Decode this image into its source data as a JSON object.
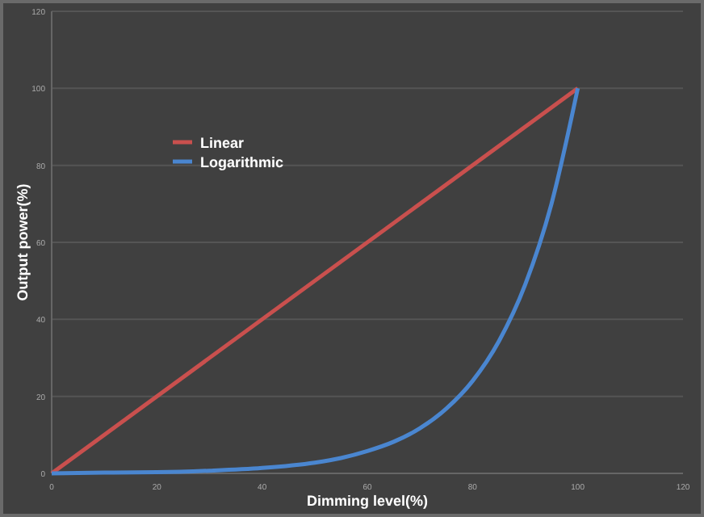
{
  "chart_data": {
    "type": "line",
    "xlabel": "Dimming level(%)",
    "ylabel": "Output power(%)",
    "xlim": [
      0,
      120
    ],
    "ylim": [
      0,
      120
    ],
    "xticks": [
      0,
      20,
      40,
      60,
      80,
      100,
      120
    ],
    "yticks": [
      0,
      20,
      40,
      60,
      80,
      100,
      120
    ],
    "grid": "y",
    "legend": "top left",
    "series": [
      {
        "name": "Linear",
        "color": "#c9504e",
        "x": [
          0,
          100
        ],
        "values": [
          0,
          100
        ]
      },
      {
        "name": "Logarithmic",
        "color": "#4a86d0",
        "x": [
          0,
          10,
          20,
          30,
          40,
          50,
          55,
          60,
          65,
          70,
          75,
          80,
          85,
          90,
          95,
          100
        ],
        "values": [
          0,
          0.2,
          0.3,
          0.7,
          1.4,
          2.8,
          4,
          5.8,
          8.2,
          11.7,
          16.8,
          24,
          34.3,
          49,
          70,
          100
        ]
      }
    ]
  }
}
